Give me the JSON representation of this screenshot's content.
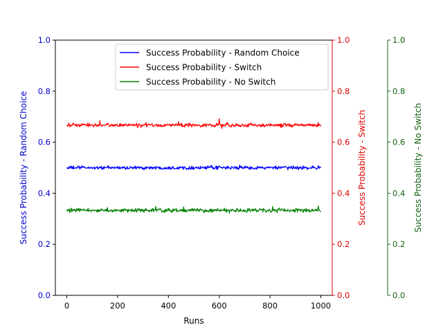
{
  "chart_data": {
    "type": "line",
    "title": "",
    "xlabel": "Runs",
    "xlim": [
      -45,
      1045
    ],
    "x_ticks": [
      0,
      200,
      400,
      600,
      800,
      1000
    ],
    "x_tick_labels": [
      "0",
      "200",
      "400",
      "600",
      "800",
      "1000"
    ],
    "y_ticks": [
      0.0,
      0.2,
      0.4,
      0.6,
      0.8,
      1.0
    ],
    "y_tick_labels": [
      "0.0",
      "0.2",
      "0.4",
      "0.6",
      "0.8",
      "1.0"
    ],
    "grid": false,
    "legend_position": "top-right",
    "axes": [
      {
        "name": "left",
        "label": "Success Probability - Random Choice",
        "color": "#0000cc",
        "ylim": [
          0,
          1
        ]
      },
      {
        "name": "right",
        "label": "Success Probability - Switch",
        "color": "#dd0000",
        "ylim": [
          0,
          1
        ]
      },
      {
        "name": "far-right",
        "label": "Success Probability - No Switch",
        "color": "#106010",
        "ylim": [
          0,
          1
        ]
      }
    ],
    "series": [
      {
        "name": "Success Probability - Random Choice",
        "color": "#0000ff",
        "axis": "left",
        "x_range": [
          0,
          1000
        ],
        "mean": 0.5,
        "noise": 0.004,
        "spikes": [
          [
            60,
            0.508
          ],
          [
            350,
            0.494
          ],
          [
            570,
            0.509
          ],
          [
            680,
            0.51
          ],
          [
            870,
            0.492
          ],
          [
            990,
            0.508
          ]
        ]
      },
      {
        "name": "Success Probability - Switch",
        "color": "#ff0000",
        "axis": "right",
        "x_range": [
          0,
          1000
        ],
        "mean": 0.667,
        "noise": 0.0045,
        "spikes": [
          [
            130,
            0.684
          ],
          [
            280,
            0.657
          ],
          [
            440,
            0.68
          ],
          [
            600,
            0.692
          ],
          [
            610,
            0.654
          ],
          [
            850,
            0.66
          ],
          [
            990,
            0.677
          ]
        ]
      },
      {
        "name": "Success Probability - No Switch",
        "color": "#008000",
        "axis": "far-right",
        "x_range": [
          0,
          1000
        ],
        "mean": 0.333,
        "noise": 0.0045,
        "spikes": [
          [
            160,
            0.344
          ],
          [
            350,
            0.348
          ],
          [
            460,
            0.346
          ],
          [
            640,
            0.322
          ],
          [
            810,
            0.348
          ],
          [
            935,
            0.319
          ],
          [
            990,
            0.35
          ]
        ]
      }
    ]
  }
}
